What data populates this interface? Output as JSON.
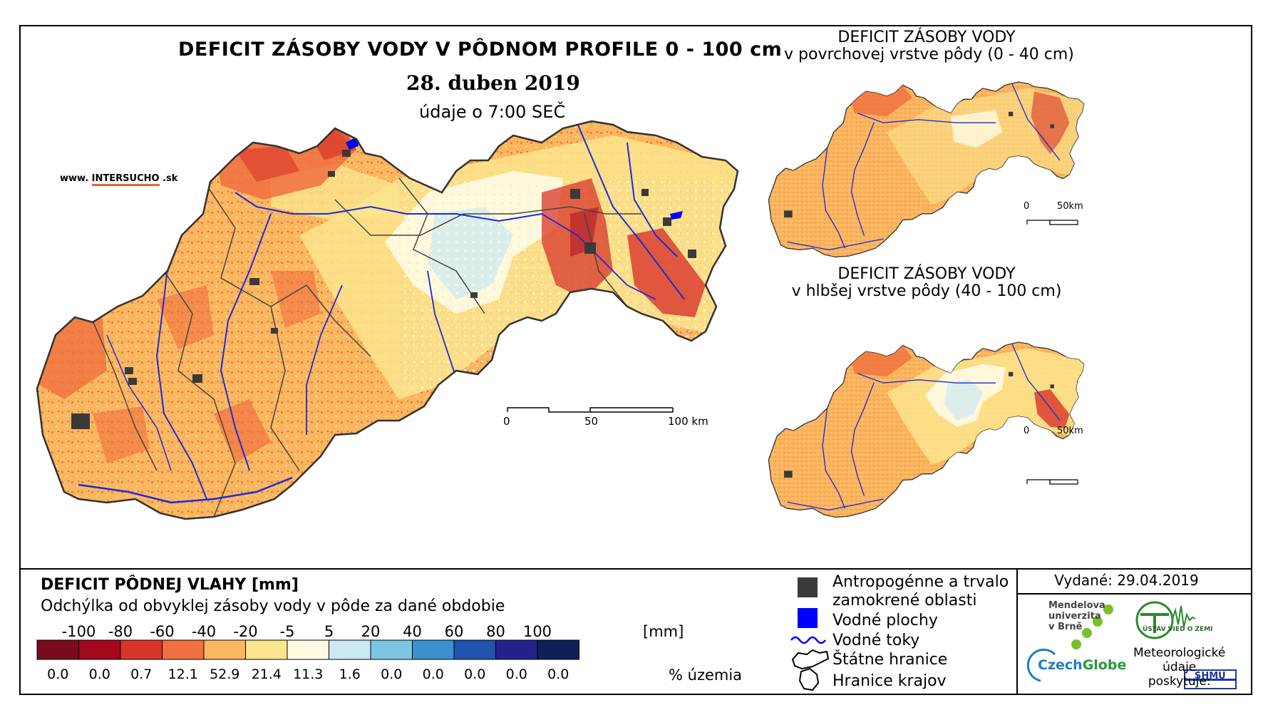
{
  "main_map": {
    "title": "DEFICIT ZÁSOBY VODY V PÔDNOM PROFILE 0 - 100 cm",
    "date": "28. duben 2019",
    "time": "údaje o 7:00 SEČ",
    "website_prefix": "www.",
    "website_brand_a": "INTER",
    "website_brand_b": "SUCHO",
    "website_suffix": ".sk",
    "scale_labels": [
      "0",
      "50",
      "100 km"
    ]
  },
  "inset_top": {
    "title_line1": "DEFICIT ZÁSOBY VODY",
    "title_line2": "v povrchovej vrstve pôdy (0 - 40 cm)",
    "scale_labels": [
      "0",
      "50km"
    ]
  },
  "inset_bottom": {
    "title_line1": "DEFICIT ZÁSOBY VODY",
    "title_line2": "v hlbšej vrstve pôdy (40 - 100 cm)",
    "scale_labels": [
      "0",
      "50km"
    ]
  },
  "legend": {
    "title": "DEFICIT PÔDNEJ VLAHY [mm]",
    "subtitle": "Odchýlka od obvyklej zásoby vody v pôde za dané obdobie",
    "unit": "[mm]",
    "percent_label": "% územia",
    "ticks": [
      "-100",
      "-80",
      "-60",
      "-40",
      "-20",
      "-5",
      "5",
      "20",
      "40",
      "60",
      "80",
      "100"
    ],
    "colors": [
      "#7a0a1c",
      "#a3081f",
      "#d8352a",
      "#f0703f",
      "#fbb760",
      "#fbe58d",
      "#fffbe3",
      "#cde9f3",
      "#7cc6e3",
      "#3c8fd0",
      "#1f54b0",
      "#23228c",
      "#0c2158"
    ],
    "percentages": [
      "0.0",
      "0.0",
      "0.7",
      "12.1",
      "52.9",
      "21.4",
      "11.3",
      "1.6",
      "0.0",
      "0.0",
      "0.0",
      "0.0",
      "0.0"
    ]
  },
  "symbols": {
    "anthropogenic_line1": "Antropogénne a trvalo",
    "anthropogenic_line2": "zamokrené oblasti",
    "water_bodies": "Vodné plochy",
    "water_streams": "Vodné toky",
    "state_border": "Štátne hranice",
    "region_border": "Hranice krajov",
    "colors": {
      "anthropogenic": "#3a3a3a",
      "water": "#0000ff"
    }
  },
  "issued": "Vydané: 29.04.2019",
  "logos": {
    "mendel_line1": "Mendelova",
    "mendel_line2": "univerzita",
    "mendel_line3": "v Brně",
    "czechglobe_a": "Czech",
    "czechglobe_b": "Globe",
    "ustav": "ÚSTAV VIED O ZEMI",
    "meteo_line1": "Meteorologické",
    "meteo_line2": "údaje",
    "meteo_line3": "poskytuje:",
    "shmu": "SHMÚ"
  }
}
